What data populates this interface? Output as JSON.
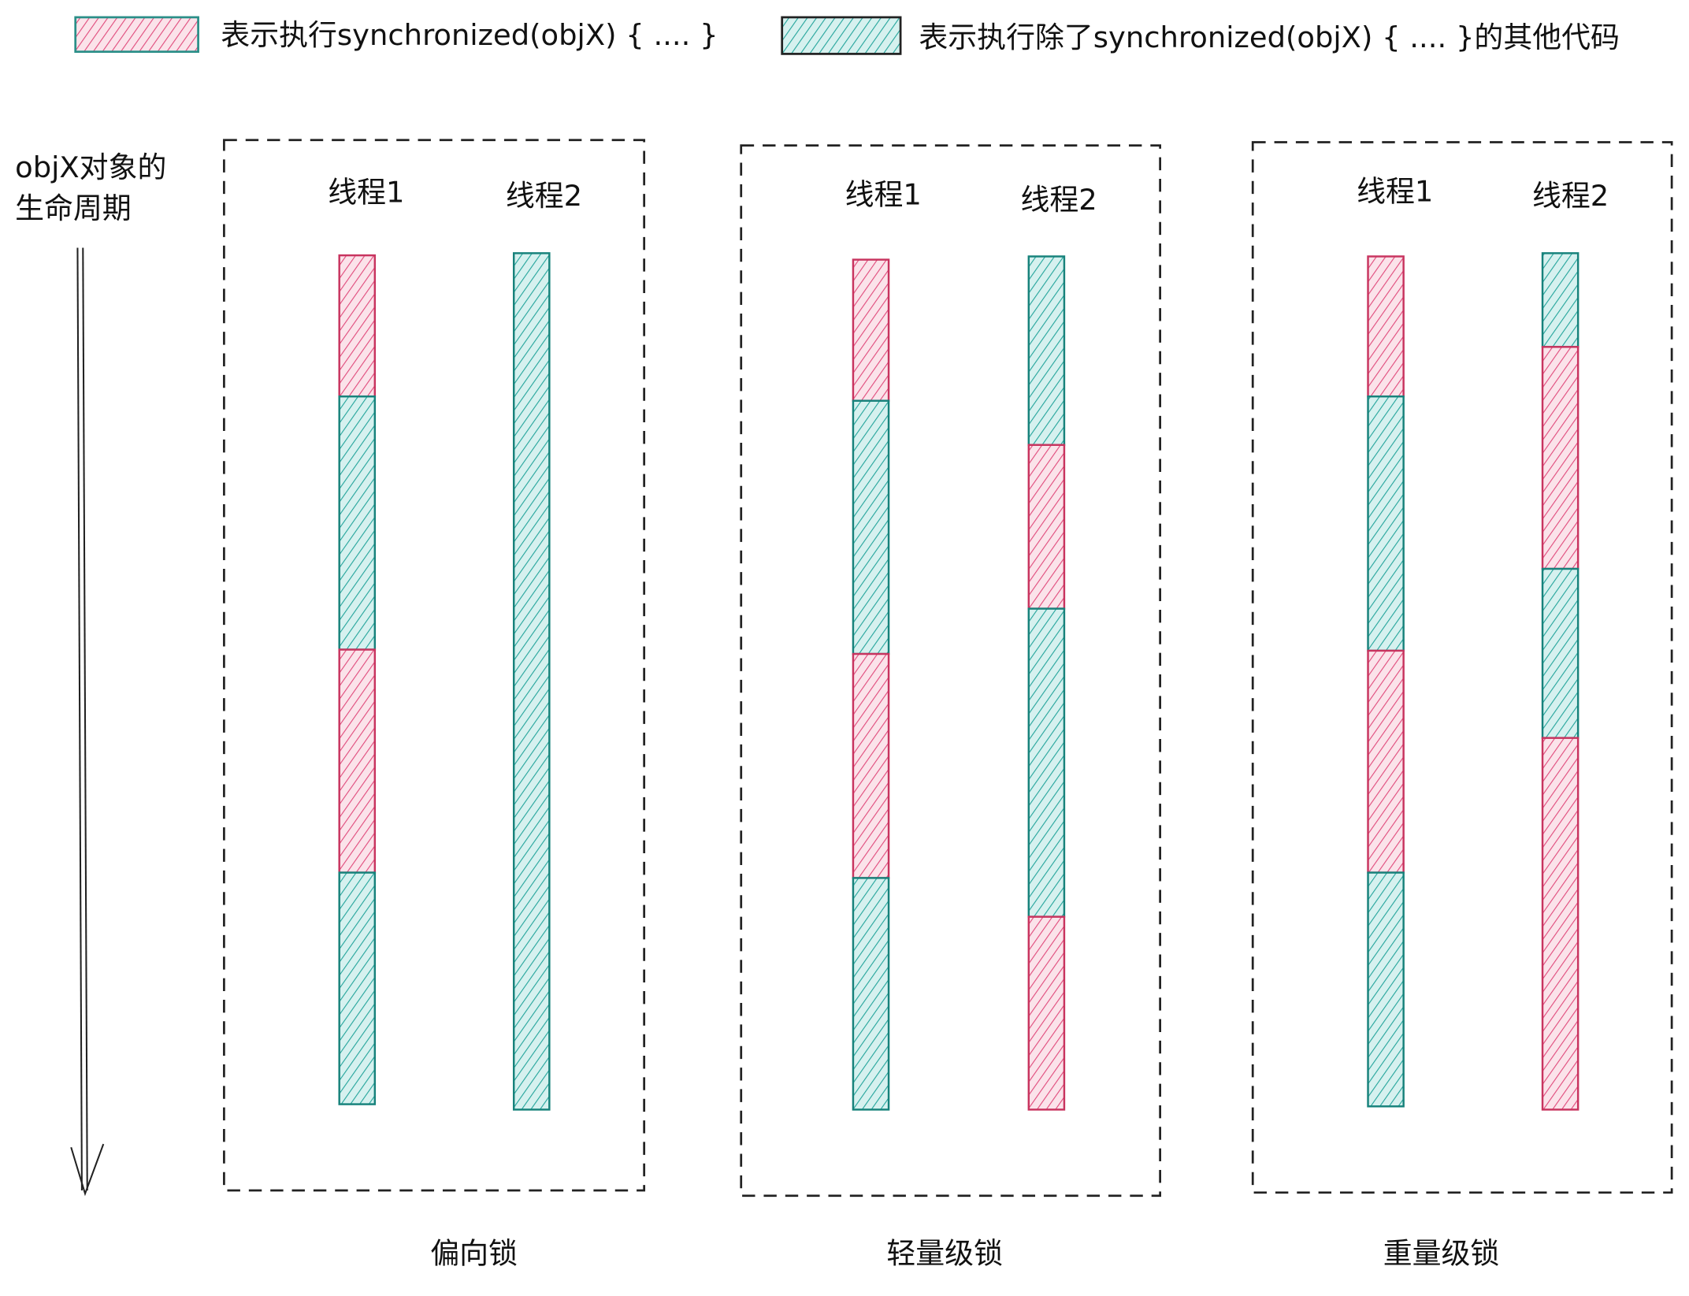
{
  "legend": [
    {
      "label": "表示执行synchronized(objX) { .... }"
    },
    {
      "label": "表示执行除了synchronized(objX) { .... }的其他代码"
    }
  ],
  "axis_label": [
    "objX对象的",
    "生命周期"
  ],
  "panels": [
    {
      "title": "偏向锁",
      "threads": [
        "线程1",
        "线程2"
      ]
    },
    {
      "title": "轻量级锁",
      "threads": [
        "线程1",
        "线程2"
      ]
    },
    {
      "title": "重量级锁",
      "threads": [
        "线程1",
        "线程2"
      ]
    }
  ]
}
